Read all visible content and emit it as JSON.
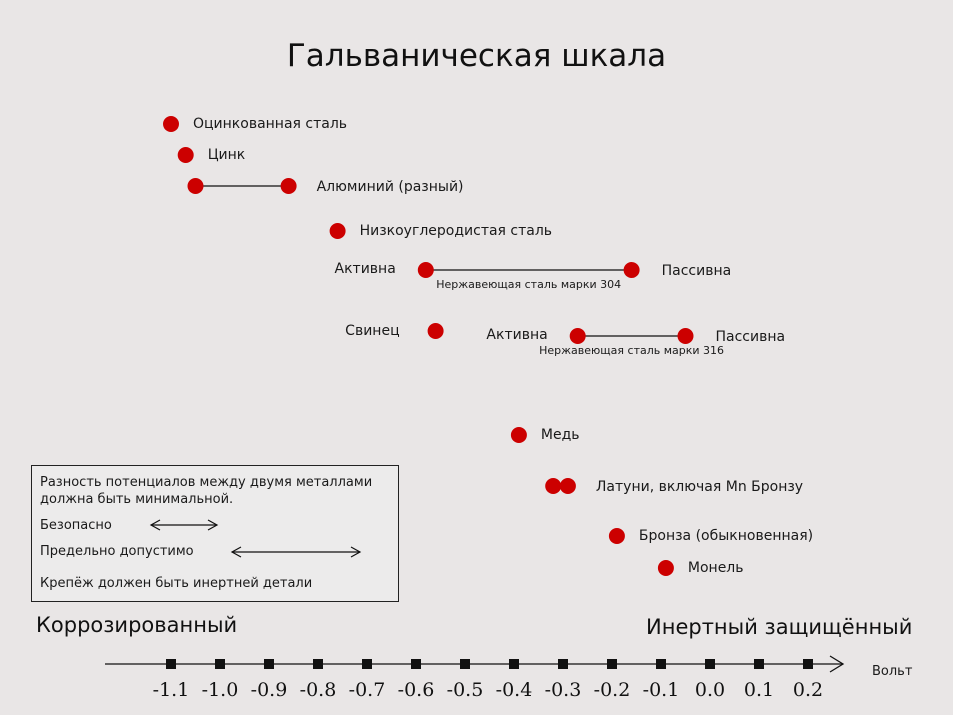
{
  "title": "Гальваническая шкала",
  "colors": {
    "dot": "#cc0000",
    "line": "#111111",
    "background": "#e9e6e6"
  },
  "materials": [
    {
      "name": "Оцинкованная сталь",
      "volt": -1.1,
      "row": 0
    },
    {
      "name": "Цинк",
      "volt": -1.07,
      "row": 1
    },
    {
      "name": "Алюминий (разный)",
      "volt_range": [
        -1.05,
        -0.86
      ],
      "row": 2
    },
    {
      "name": "Низкоуглеродистая сталь",
      "volt": -0.76,
      "row": 3
    },
    {
      "name": "Нержавеющая сталь марки 304",
      "active_volt": -0.58,
      "passive_volt": -0.16,
      "active_label": "Активна",
      "passive_label": "Пассивна",
      "row": 4
    },
    {
      "name": "Свинец",
      "volt": -0.56,
      "row": 5
    },
    {
      "name": "Нержавеющая сталь марки 316",
      "active_volt": -0.27,
      "passive_volt": -0.05,
      "active_label": "Активна",
      "passive_label": "Пассивна",
      "row": 6
    },
    {
      "name": "Медь",
      "volt": -0.39,
      "row": 7
    },
    {
      "name": "Латуни, включая Mn Бронзу",
      "volt_range": [
        -0.32,
        -0.29
      ],
      "row": 8
    },
    {
      "name": "Бронза (обыкновенная)",
      "volt": -0.19,
      "row": 9
    },
    {
      "name": "Монель",
      "volt": -0.09,
      "row": 10
    }
  ],
  "legend": {
    "text": "Разность потенциалов между двумя металлами должна быть минимальной.",
    "safe_label": "Безопасно",
    "limit_label": "Предельно допустимо",
    "fastener_label": "Крепёж должен быть инертней детали"
  },
  "axis": {
    "left_label": "Коррозированный",
    "right_label": "Инертный защищённый",
    "unit_label": "Вольт",
    "ticks": [
      "-1.1",
      "-1.0",
      "-0.9",
      "-0.8",
      "-0.7",
      "-0.6",
      "-0.5",
      "-0.4",
      "-0.3",
      "-0.2",
      "-0.1",
      "0.0",
      "0.1",
      "0.2"
    ]
  }
}
